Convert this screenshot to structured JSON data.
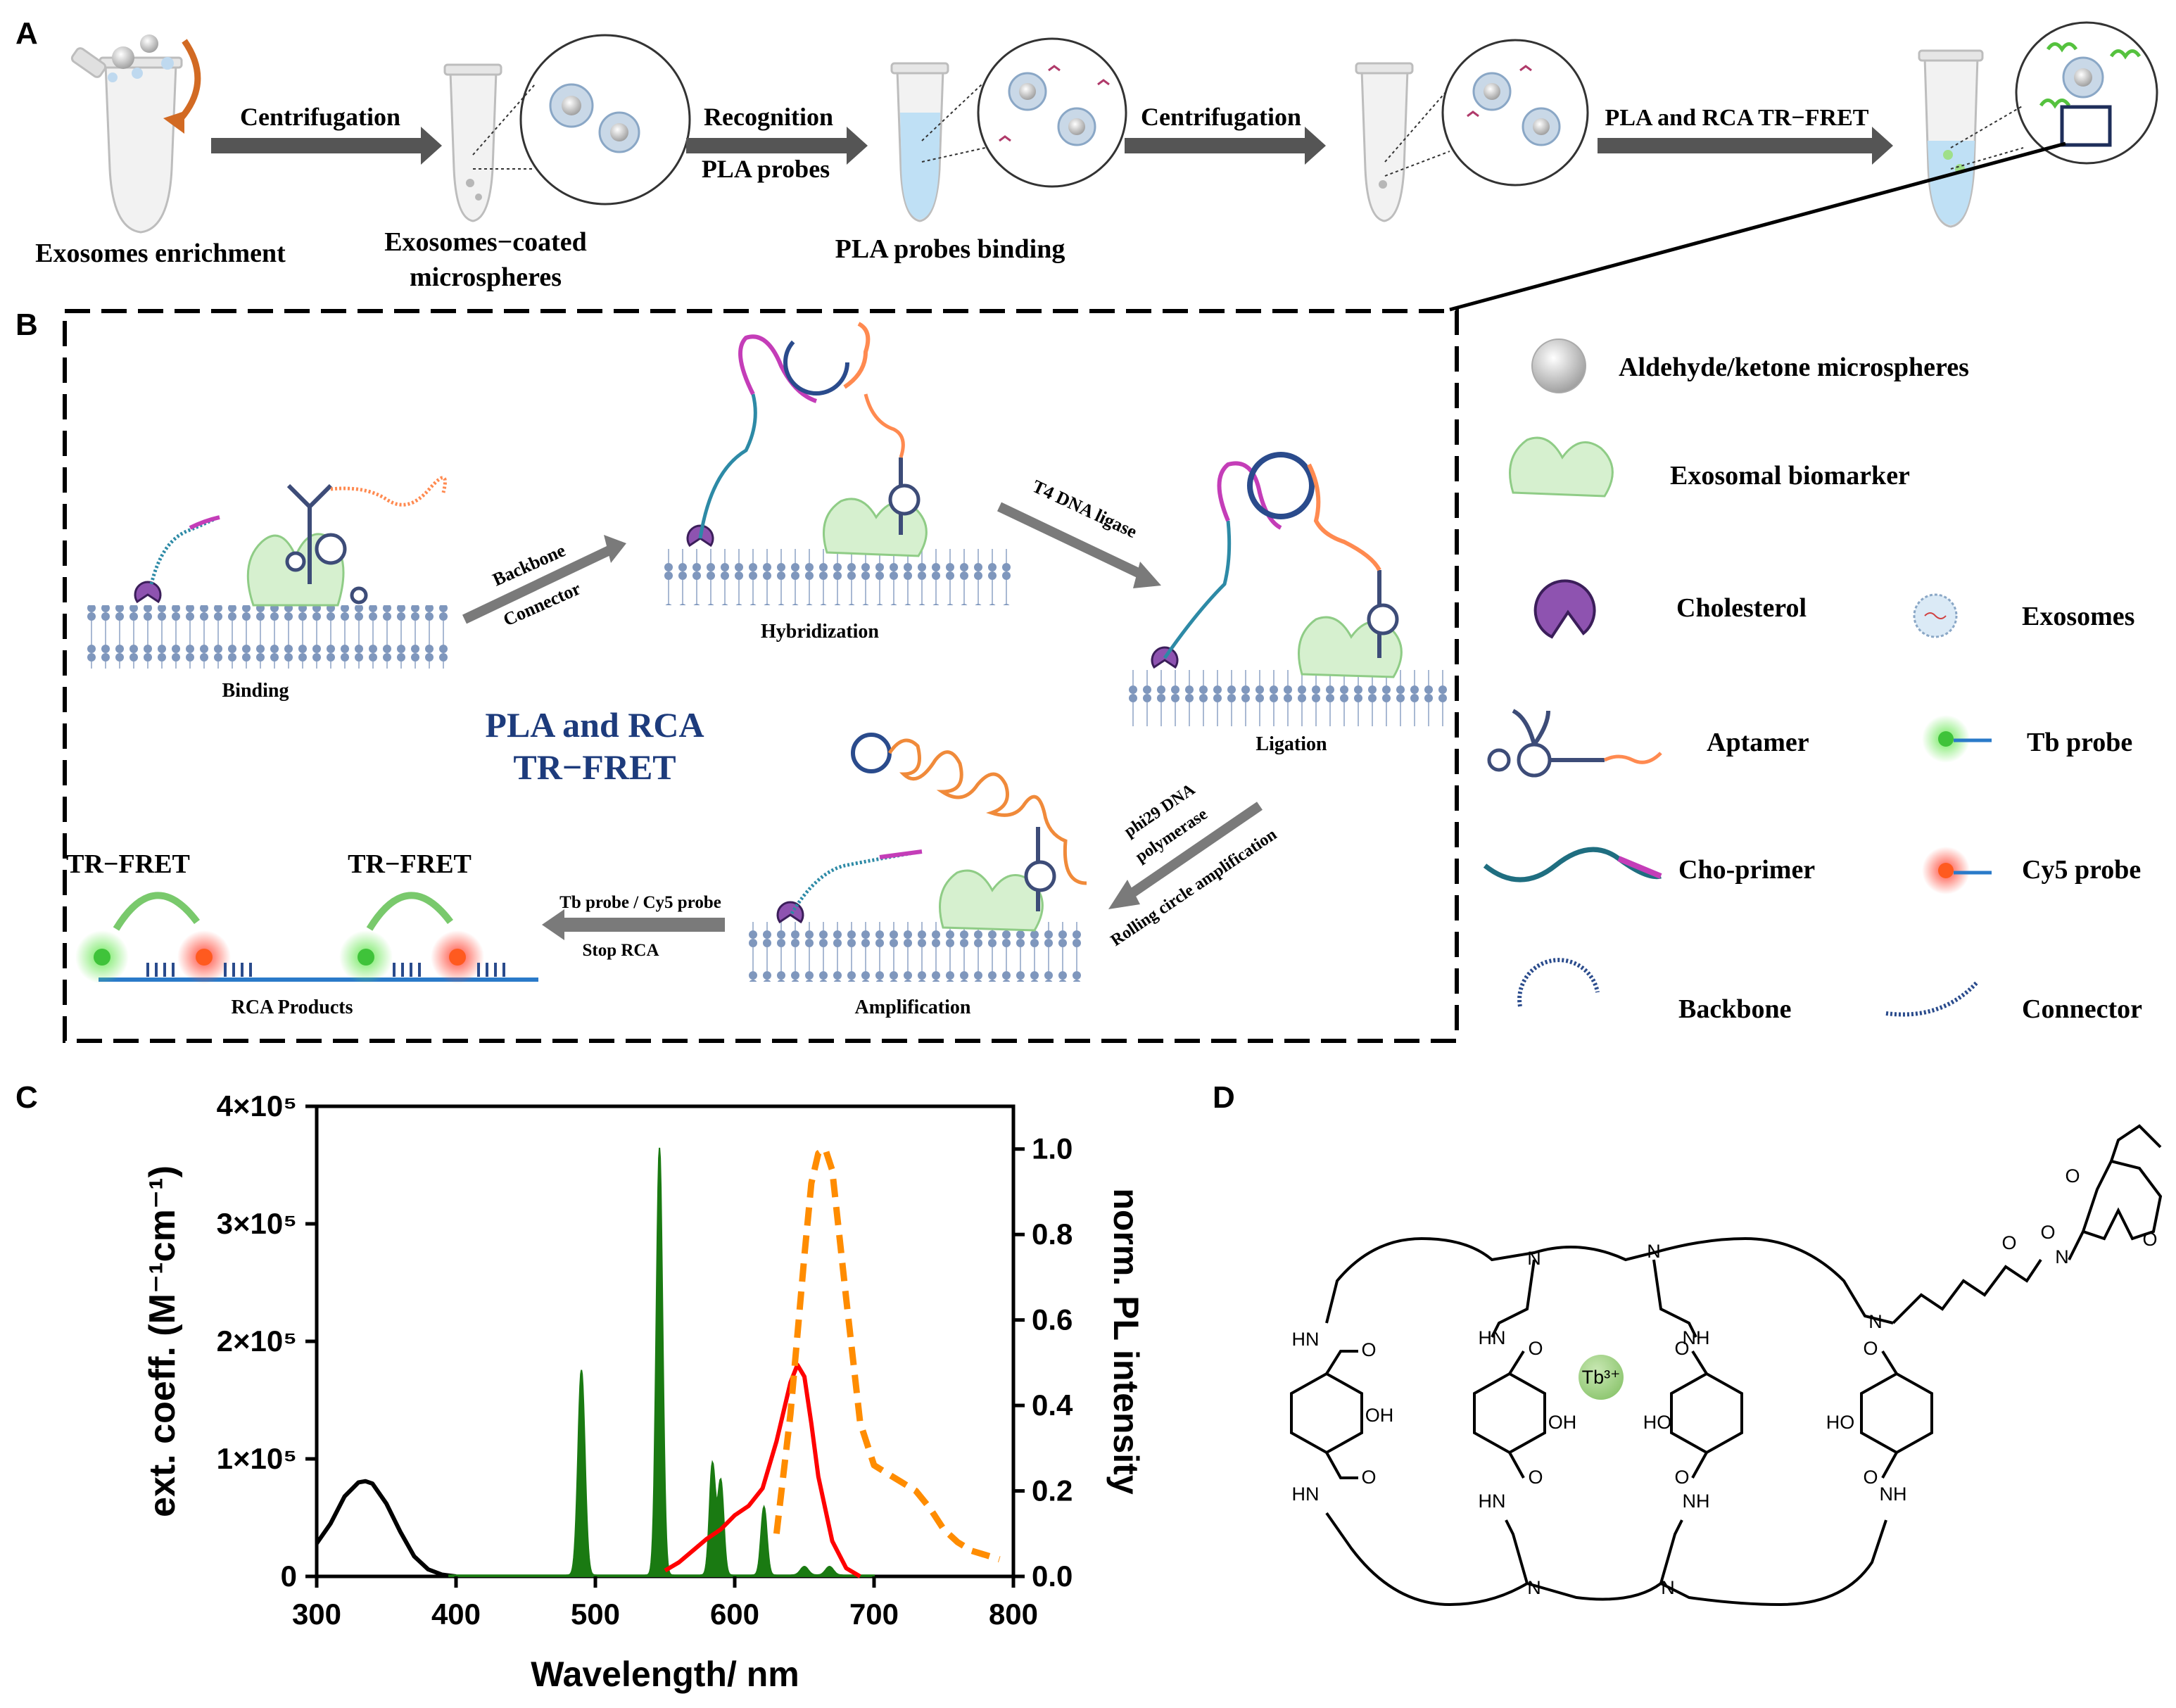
{
  "panels": {
    "a": "A",
    "b": "B",
    "c": "C",
    "d": "D"
  },
  "panel_a": {
    "steps": [
      {
        "label_lines": [
          "Exosomes enrichment"
        ]
      },
      {
        "label_lines": [
          "Exosomes−coated",
          "microspheres"
        ]
      },
      {
        "label_lines": [
          "PLA probes binding"
        ]
      }
    ],
    "arrows": [
      {
        "top": "Centrifugation",
        "bottom": ""
      },
      {
        "top": "Recognition",
        "bottom": "PLA probes"
      },
      {
        "top": "Centrifugation",
        "bottom": ""
      },
      {
        "top": "PLA and RCA TR−FRET",
        "bottom": ""
      }
    ]
  },
  "panel_b": {
    "center_title": [
      "PLA and RCA",
      "TR−FRET"
    ],
    "stages": {
      "binding": "Binding",
      "hybridization": "Hybridization",
      "ligation": "Ligation",
      "amplification": "Amplification",
      "rca_products": "RCA Products"
    },
    "arrows": {
      "backbone": [
        "Backbone",
        "Connector"
      ],
      "ligase": "T4 DNA ligase",
      "phi29": [
        "phi29 DNA",
        "polymerase",
        "Rolling circle amplification"
      ],
      "tb_cy5": [
        "Tb probe / Cy5 probe",
        "Stop RCA"
      ]
    },
    "trfret": [
      "TR−FRET",
      "TR−FRET"
    ]
  },
  "legend": {
    "items": [
      {
        "label": "Aldehyde/ketone microspheres"
      },
      {
        "label": "Exosomal biomarker"
      },
      {
        "label": "Cholesterol"
      },
      {
        "label": "Exosomes"
      },
      {
        "label": "Aptamer"
      },
      {
        "label": "Tb probe"
      },
      {
        "label": "Cho-primer"
      },
      {
        "label": "Cy5 probe"
      },
      {
        "label": "Backbone"
      },
      {
        "label": "Connector"
      }
    ]
  },
  "chart_data": {
    "type": "line",
    "xlabel": "Wavelength/ nm",
    "ylabel_left": "ext. coeff. (M⁻¹cm⁻¹)",
    "ylabel_right": "norm. PL intensity",
    "xlim": [
      300,
      800
    ],
    "ylim_left": [
      0,
      400000
    ],
    "ylim_right": [
      0,
      1.1
    ],
    "x_ticks": [
      "300",
      "400",
      "500",
      "600",
      "700",
      "800"
    ],
    "y_left_ticks": [
      "0",
      "1×10⁵",
      "2×10⁵",
      "3×10⁵",
      "4×10⁵"
    ],
    "y_right_ticks": [
      "0.0",
      "0.2",
      "0.4",
      "0.6",
      "0.8",
      "1.0"
    ],
    "colors": {
      "absorption_tb": "#000000",
      "emission_tb": "#1a7a12",
      "absorption_cy5": "#ff0000",
      "emission_cy5": "#ff8c00"
    },
    "series": [
      {
        "name": "Tb complex absorption",
        "axis": "left",
        "style": "solid",
        "x": [
          300,
          310,
          320,
          330,
          335,
          340,
          350,
          360,
          370,
          380,
          390,
          400
        ],
        "y": [
          28000,
          45000,
          68000,
          80000,
          81000,
          79000,
          62000,
          38000,
          17000,
          6000,
          1500,
          0
        ]
      },
      {
        "name": "Tb emission",
        "axis": "right",
        "style": "fill",
        "peaks": [
          {
            "center": 490,
            "height": 0.48,
            "width": 3.5
          },
          {
            "center": 546,
            "height": 1.0,
            "width": 3.2
          },
          {
            "center": 584,
            "height": 0.26,
            "width": 3
          },
          {
            "center": 590,
            "height": 0.22,
            "width": 3
          },
          {
            "center": 621,
            "height": 0.16,
            "width": 3
          },
          {
            "center": 650,
            "height": 0.02,
            "width": 4
          },
          {
            "center": 668,
            "height": 0.02,
            "width": 4
          }
        ]
      },
      {
        "name": "Cy5 absorption",
        "axis": "left",
        "style": "solid",
        "x": [
          550,
          560,
          570,
          580,
          590,
          600,
          610,
          620,
          630,
          640,
          645,
          650,
          655,
          660,
          670,
          680,
          690
        ],
        "y": [
          5000,
          12000,
          22000,
          32000,
          40000,
          52000,
          60000,
          75000,
          115000,
          165000,
          180000,
          170000,
          130000,
          85000,
          30000,
          7000,
          0
        ]
      },
      {
        "name": "Cy5 emission",
        "axis": "right",
        "style": "dashed",
        "x": [
          630,
          640,
          650,
          655,
          660,
          665,
          670,
          680,
          690,
          700,
          710,
          720,
          730,
          740,
          750,
          760,
          770,
          780,
          790
        ],
        "y": [
          0.1,
          0.38,
          0.75,
          0.92,
          0.99,
          1.0,
          0.95,
          0.65,
          0.36,
          0.26,
          0.24,
          0.22,
          0.2,
          0.16,
          0.11,
          0.08,
          0.06,
          0.05,
          0.04
        ]
      }
    ]
  },
  "panel_d": {
    "atom_N": "N",
    "atom_O": "O",
    "group_OH": "OH",
    "group_HO": "HO",
    "group_HN": "HN",
    "group_NH": "NH",
    "metal": "Tb³⁺"
  }
}
